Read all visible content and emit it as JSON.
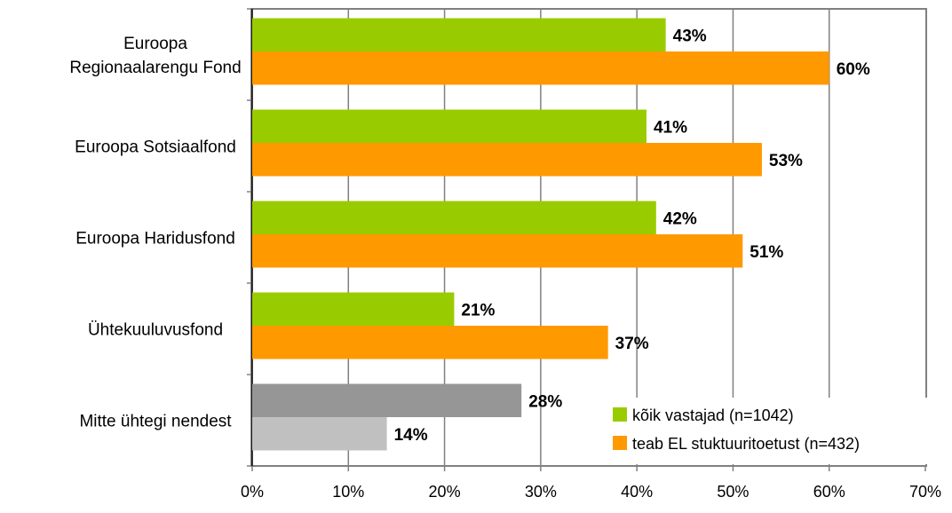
{
  "chart_data": {
    "type": "bar",
    "orientation": "horizontal",
    "title": "",
    "xlabel": "",
    "ylabel": "",
    "xlim": [
      0,
      70
    ],
    "x_ticks": [
      "0%",
      "10%",
      "20%",
      "30%",
      "40%",
      "50%",
      "60%",
      "70%"
    ],
    "grid": "vertical gridlines",
    "legend_position": "bottom-right",
    "categories": [
      [
        "Euroopa",
        "Regionaalarengu Fond"
      ],
      [
        "Euroopa Sotsiaalfond"
      ],
      [
        "Euroopa Haridusfond"
      ],
      [
        "Ühtekuuluvusfond"
      ],
      [
        "Mitte ühtegi nendest"
      ]
    ],
    "series": [
      {
        "name": "kõik vastajad (n=1042)",
        "color": "#99cc00",
        "values": [
          43,
          41,
          42,
          21,
          28
        ],
        "labels": [
          "43%",
          "41%",
          "42%",
          "21%",
          "28%"
        ]
      },
      {
        "name": "teab EL stuktuuritoetust (n=432)",
        "color": "#ff9900",
        "values": [
          60,
          53,
          51,
          37,
          14
        ],
        "labels": [
          "60%",
          "53%",
          "51%",
          "37%",
          "14%"
        ]
      }
    ],
    "last_category_colors": [
      "#969696",
      "#c0c0c0"
    ]
  }
}
